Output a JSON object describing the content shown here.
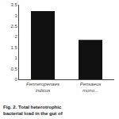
{
  "chart_data": {
    "type": "bar",
    "caption": "Fig. 2. Total heterotrophic bacterial load in the gut of",
    "categories": [
      "Fenneropenaes indicus",
      "Pensaeus mono..."
    ],
    "values": [
      3.2,
      1.85
    ],
    "color": "#111111",
    "ylim": [
      0,
      3.5
    ],
    "yticks": [
      0,
      0.5,
      1,
      1.5,
      2,
      2.5,
      3,
      3.5
    ],
    "grid": false
  }
}
